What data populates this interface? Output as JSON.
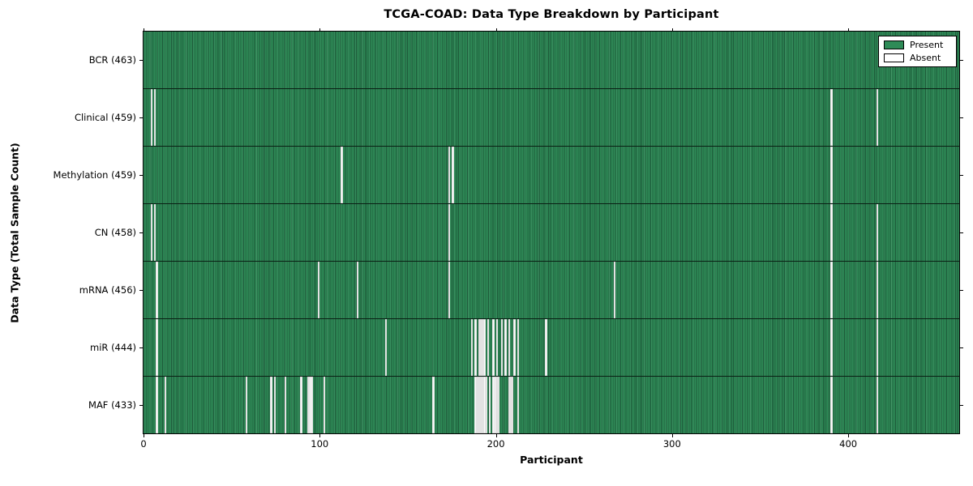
{
  "title": "TCGA-COAD: Data Type Breakdown by Participant",
  "xlabel": "Participant",
  "ylabel": "Data Type (Total Sample Count)",
  "legend": {
    "present_label": "Present",
    "absent_label": "Absent"
  },
  "colors": {
    "present_fill": "#2e8b57",
    "present_edge": "#1d5939",
    "absent_fill": "#ffffff",
    "frame": "#000000",
    "background": "#ffffff"
  },
  "chart_data": {
    "type": "heatmap",
    "title": "TCGA-COAD: Data Type Breakdown by Participant",
    "xlabel": "Participant",
    "ylabel": "Data Type (Total Sample Count)",
    "legend_entries": [
      "Present",
      "Absent"
    ],
    "legend_position": "upper right",
    "grid": false,
    "n_participants": 463,
    "x_range": [
      0,
      463
    ],
    "x_ticks": [
      0,
      100,
      200,
      300,
      400
    ],
    "rows": [
      {
        "label": "BCR (463)",
        "data_type": "BCR",
        "total": 463,
        "absent_count": 0,
        "absent_indices": []
      },
      {
        "label": "Clinical (459)",
        "data_type": "Clinical",
        "total": 459,
        "absent_count": 4,
        "absent_indices": [
          4,
          6,
          390,
          416
        ]
      },
      {
        "label": "Methylation (459)",
        "data_type": "Methylation",
        "total": 459,
        "absent_count": 4,
        "absent_indices": [
          112,
          173,
          175,
          390
        ]
      },
      {
        "label": "CN (458)",
        "data_type": "CN",
        "total": 458,
        "absent_count": 5,
        "absent_indices": [
          4,
          6,
          173,
          390,
          416
        ]
      },
      {
        "label": "mRNA (456)",
        "data_type": "mRNA",
        "total": 456,
        "absent_count": 7,
        "absent_indices": [
          7,
          99,
          121,
          173,
          267,
          390,
          416
        ]
      },
      {
        "label": "miR (444)",
        "data_type": "miR",
        "total": 444,
        "absent_count": 19,
        "absent_indices": [
          7,
          137,
          186,
          188,
          190,
          191,
          192,
          193,
          195,
          198,
          200,
          203,
          205,
          207,
          210,
          212,
          228,
          390,
          416
        ]
      },
      {
        "label": "MAF (433)",
        "data_type": "MAF",
        "total": 433,
        "absent_count": 30,
        "absent_indices": [
          7,
          12,
          58,
          72,
          74,
          80,
          89,
          93,
          94,
          95,
          102,
          164,
          188,
          189,
          190,
          191,
          192,
          193,
          194,
          196,
          198,
          199,
          200,
          201,
          207,
          208,
          209,
          212,
          390,
          416
        ]
      }
    ]
  }
}
